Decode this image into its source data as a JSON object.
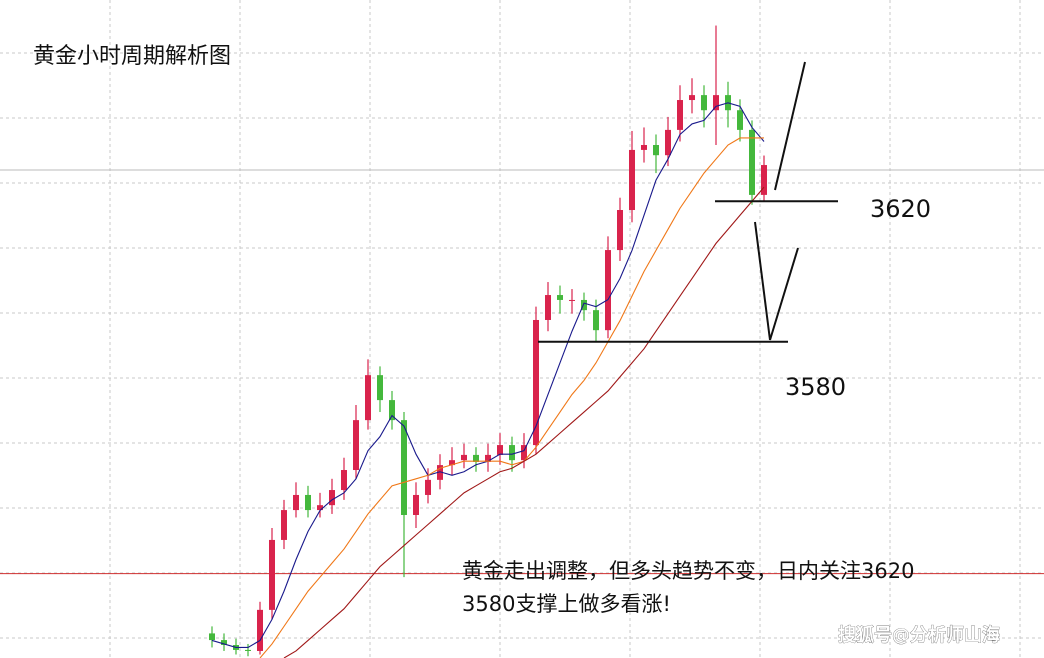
{
  "chart_data": {
    "type": "candlestick",
    "title": "黄金小时周期解析图",
    "ylim": [
      3490,
      3673
    ],
    "up_color": "#d9234c",
    "down_color": "#44b83c",
    "open": [
      3497.0,
      3495.1,
      3493.7,
      3492.3,
      3492.0,
      3503.7,
      3523.6,
      3532.1,
      3536.4,
      3532.1,
      3533.5,
      3537.8,
      3543.5,
      3557.7,
      3570.5,
      3563.4,
      3557.7,
      3530.7,
      3536.4,
      3540.7,
      3544.9,
      3546.3,
      3547.8,
      3545.8,
      3547.8,
      3550.6,
      3546.3,
      3550.6,
      3586.2,
      3593.3,
      3591.9,
      3591.9,
      3589.0,
      3583.3,
      3606.1,
      3617.5,
      3634.6,
      3636.0,
      3633.1,
      3640.3,
      3648.8,
      3650.2,
      3645.9,
      3650.2,
      3645.9,
      3640.3,
      3621.8
    ],
    "close": [
      3495.1,
      3493.7,
      3492.3,
      3492.0,
      3503.7,
      3523.6,
      3532.1,
      3536.4,
      3532.1,
      3533.5,
      3537.8,
      3543.5,
      3557.7,
      3570.5,
      3563.4,
      3557.7,
      3530.7,
      3536.4,
      3540.7,
      3544.9,
      3546.3,
      3547.8,
      3545.8,
      3547.8,
      3550.6,
      3546.3,
      3550.6,
      3586.2,
      3593.3,
      3591.9,
      3591.9,
      3589.0,
      3583.3,
      3606.1,
      3617.5,
      3634.6,
      3636.0,
      3633.1,
      3640.3,
      3648.8,
      3650.2,
      3645.9,
      3650.2,
      3645.9,
      3640.3,
      3621.8,
      3630.3
    ],
    "high": [
      3499.0,
      3497.0,
      3495.5,
      3494.0,
      3506.0,
      3527.0,
      3535.0,
      3540.0,
      3539.0,
      3537.0,
      3541.0,
      3547.0,
      3562.0,
      3575.0,
      3573.0,
      3566.0,
      3560.0,
      3540.0,
      3544.0,
      3548.0,
      3550.0,
      3551.0,
      3550.0,
      3551.0,
      3554.0,
      3553.0,
      3554.0,
      3590.0,
      3597.0,
      3596.0,
      3595.0,
      3594.0,
      3592.0,
      3610.0,
      3621.0,
      3640.0,
      3641.0,
      3639.0,
      3644.0,
      3653.0,
      3655.0,
      3653.0,
      3670.0,
      3654.0,
      3649.0,
      3643.0,
      3633.0
    ],
    "low": [
      3493.0,
      3492.0,
      3491.0,
      3490.5,
      3491.0,
      3501.0,
      3521.0,
      3530.0,
      3530.0,
      3530.0,
      3531.0,
      3535.0,
      3541.0,
      3555.0,
      3560.0,
      3555.0,
      3513.0,
      3527.0,
      3534.0,
      3538.0,
      3542.0,
      3544.0,
      3543.0,
      3543.0,
      3545.0,
      3543.0,
      3544.0,
      3548.0,
      3583.0,
      3588.0,
      3588.0,
      3586.0,
      3580.0,
      3581.0,
      3603.0,
      3614.0,
      3631.0,
      3628.0,
      3630.0,
      3637.0,
      3645.0,
      3641.0,
      3636.0,
      3641.0,
      3637.0,
      3619.0,
      3620.0
    ],
    "moving_averages": [
      {
        "color": "#1a1a8c",
        "values": [
          3495,
          3494,
          3493,
          3493,
          3495,
          3501,
          3509,
          3518,
          3526,
          3532,
          3535,
          3537,
          3541,
          3549,
          3553,
          3559,
          3556,
          3548,
          3542,
          3543,
          3542,
          3543,
          3545,
          3546,
          3548,
          3548,
          3549,
          3556,
          3565,
          3574,
          3583,
          3591,
          3590,
          3592,
          3598,
          3606,
          3616,
          3626,
          3632,
          3639,
          3642,
          3643,
          3647,
          3648,
          3647,
          3641,
          3637
        ]
      },
      {
        "color": "#f07818",
        "values": [
          null,
          null,
          null,
          null,
          3490,
          3494,
          3499,
          3504,
          3509,
          3513,
          3517,
          3521,
          3526,
          3531,
          3535,
          3539,
          3540,
          3541,
          3542,
          3544,
          3545,
          3546,
          3546,
          3546,
          3546,
          3545,
          3546,
          3550,
          3555,
          3560,
          3565,
          3569,
          3574,
          3580,
          3586,
          3593,
          3600,
          3606,
          3612,
          3618,
          3623,
          3628,
          3632,
          3636,
          3638,
          3638,
          3638
        ]
      },
      {
        "color": "#a01818",
        "values": [
          null,
          null,
          null,
          null,
          null,
          null,
          3490,
          3492,
          3495,
          3498,
          3501,
          3504,
          3508,
          3512,
          3516,
          3519,
          3522,
          3525,
          3528,
          3531,
          3534,
          3537,
          3539,
          3541,
          3543,
          3544,
          3546,
          3548,
          3551,
          3554,
          3557,
          3560,
          3563,
          3566,
          3570,
          3574,
          3578,
          3583,
          3588,
          3593,
          3598,
          3603,
          3608,
          3612,
          3616,
          3620,
          3624
        ]
      }
    ],
    "reference_line": {
      "value": 3514,
      "color": "#d03030"
    },
    "levels": [
      3620,
      3580
    ],
    "annotation": [
      "黄金走出调整，但多头趋势不变，日内关注3620",
      "3580支撑上做多看涨!"
    ],
    "watermark": "搜狐号@分析师山海"
  }
}
